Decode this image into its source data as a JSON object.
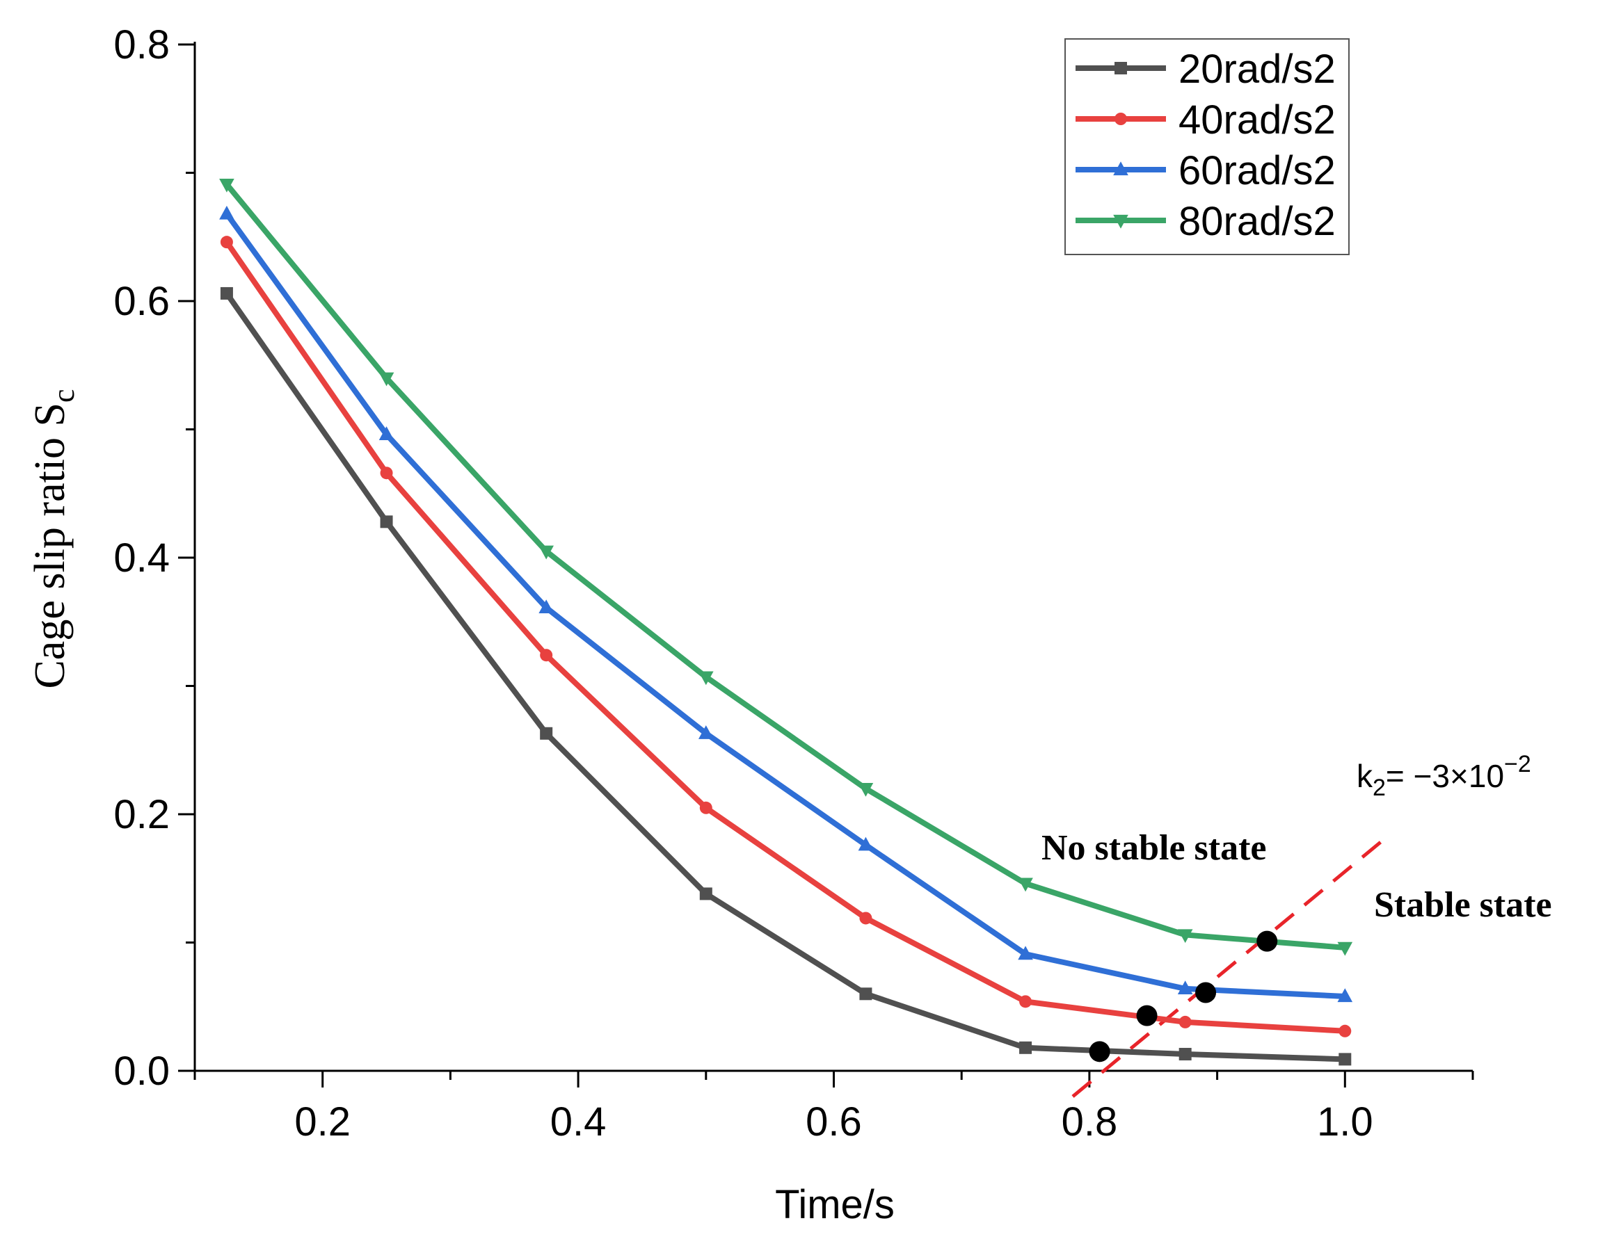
{
  "chart_data": {
    "type": "line",
    "title": "",
    "xlabel": "Time/s",
    "ylabel_main": "Cage slip ratio S",
    "ylabel_sub": "c",
    "xlim": [
      0.1,
      1.1
    ],
    "ylim": [
      0.0,
      0.8
    ],
    "x_ticks": [
      0.2,
      0.4,
      0.6,
      0.8,
      1.0
    ],
    "x_tick_labels": [
      "0.2",
      "0.4",
      "0.6",
      "0.8",
      "1.0"
    ],
    "x_minor_ticks": [
      0.1,
      0.3,
      0.5,
      0.7,
      0.9,
      1.1
    ],
    "y_ticks": [
      0.0,
      0.2,
      0.4,
      0.6,
      0.8
    ],
    "y_tick_labels": [
      "0.0",
      "0.2",
      "0.4",
      "0.6",
      "0.8"
    ],
    "y_minor_ticks": [
      0.1,
      0.3,
      0.5,
      0.7
    ],
    "grid": false,
    "legend_position": "top-right",
    "x": [
      0.125,
      0.25,
      0.375,
      0.5,
      0.625,
      0.75,
      0.875,
      1.0
    ],
    "series": [
      {
        "name": "20rad/s2",
        "color": "#505050",
        "marker": "square",
        "values": [
          0.606,
          0.428,
          0.263,
          0.138,
          0.06,
          0.018,
          0.013,
          0.009
        ]
      },
      {
        "name": "40rad/s2",
        "color": "#e8413f",
        "marker": "circle",
        "values": [
          0.646,
          0.466,
          0.324,
          0.205,
          0.119,
          0.054,
          0.038,
          0.031
        ]
      },
      {
        "name": "60rad/s2",
        "color": "#2f6fd6",
        "marker": "triangle-up",
        "values": [
          0.668,
          0.496,
          0.361,
          0.263,
          0.176,
          0.091,
          0.064,
          0.058
        ]
      },
      {
        "name": "80rad/s2",
        "color": "#3aa567",
        "marker": "triangle-down",
        "values": [
          0.691,
          0.54,
          0.405,
          0.307,
          0.22,
          0.146,
          0.106,
          0.096
        ]
      }
    ],
    "stable_line": {
      "color": "#e8242a",
      "from": [
        0.787,
        -0.02
      ],
      "to": [
        1.03,
        0.18
      ]
    },
    "intersection_points": [
      {
        "x": 0.808,
        "y": 0.015
      },
      {
        "x": 0.845,
        "y": 0.043
      },
      {
        "x": 0.891,
        "y": 0.061
      },
      {
        "x": 0.939,
        "y": 0.101
      }
    ],
    "annotations": {
      "no_stable": "No stable state",
      "stable": "Stable state",
      "k_main": "k",
      "k_sub": "2",
      "k_rest": "= −3×10",
      "k_exp": "−2"
    }
  }
}
